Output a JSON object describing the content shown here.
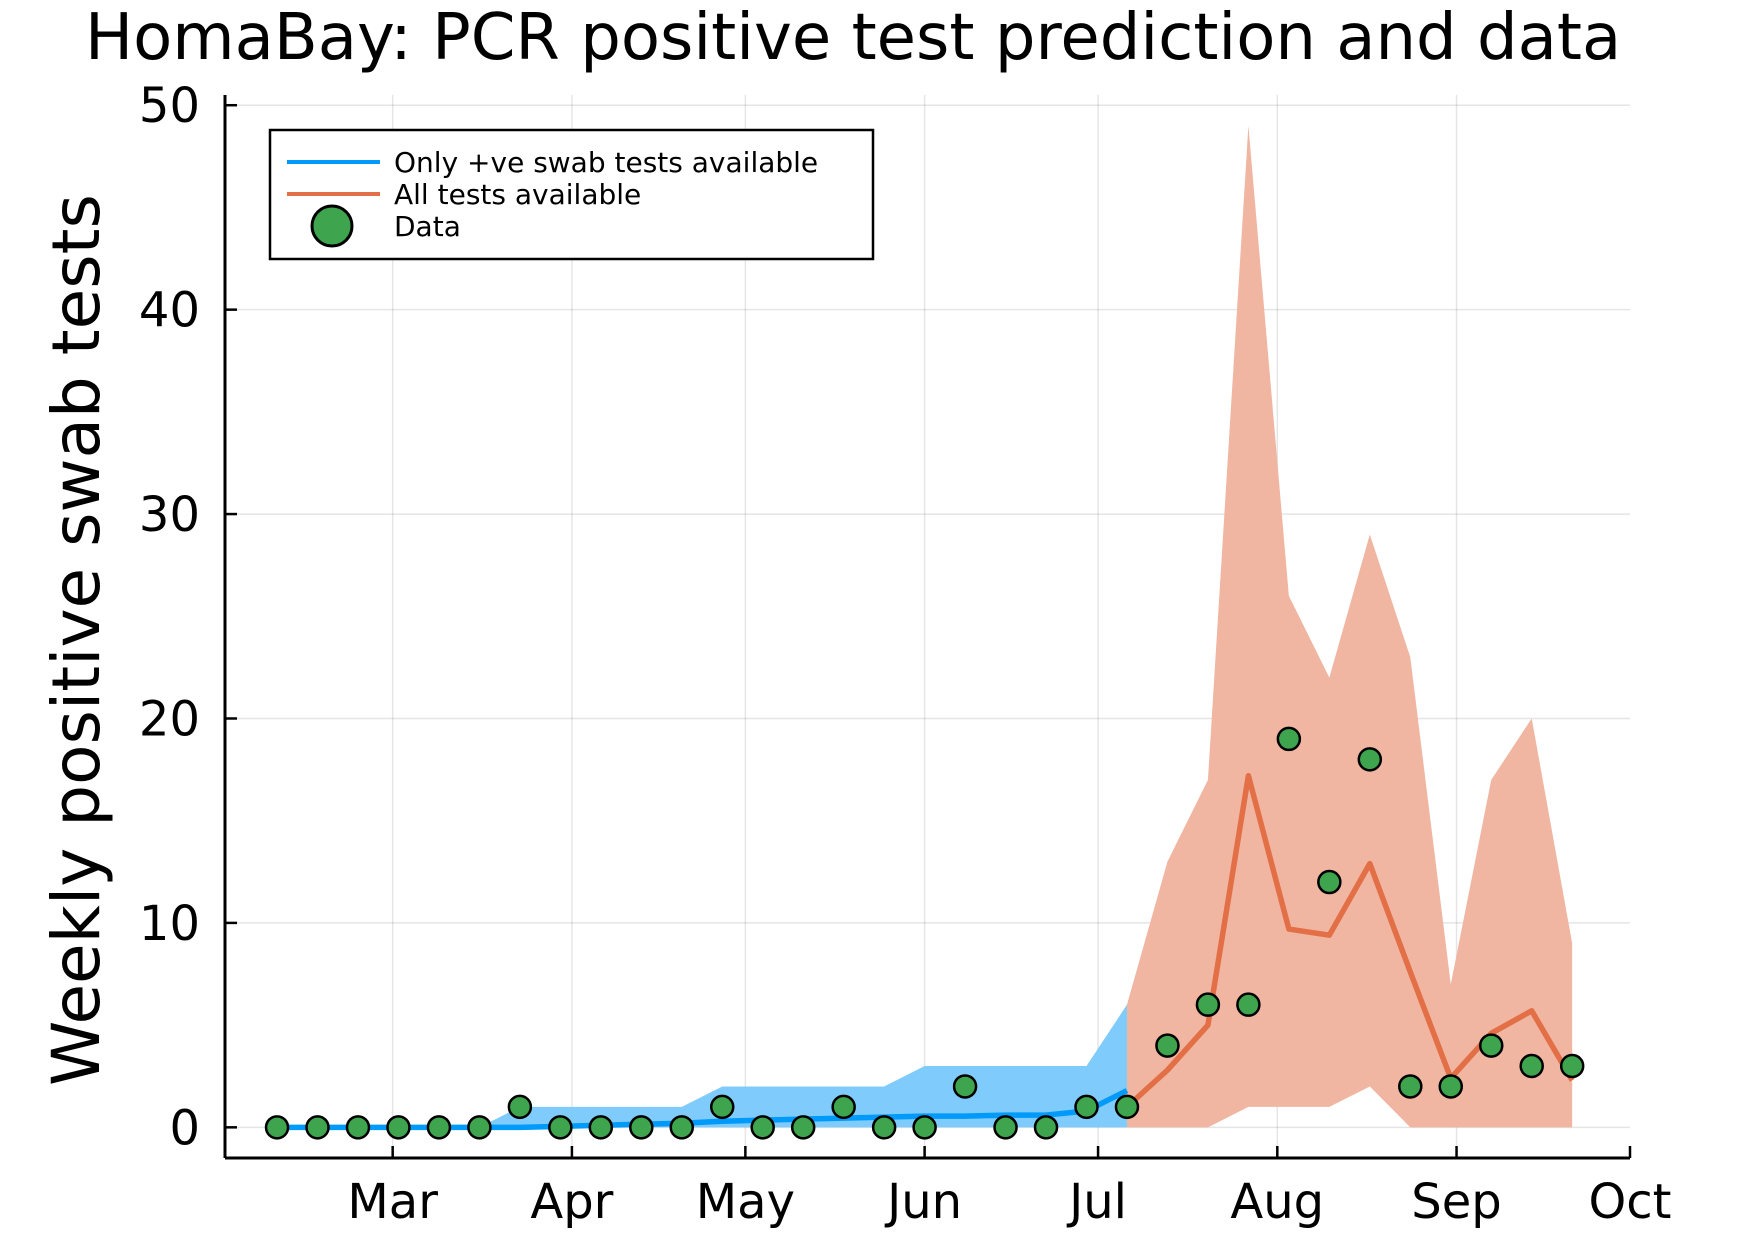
{
  "chart_data": {
    "type": "line",
    "title": "HomaBay: PCR positive test prediction and data",
    "xlabel": "",
    "ylabel": "Weekly positive swab tests",
    "ylim": [
      -1.5,
      50.5
    ],
    "x_date_range": [
      "2020-02-01",
      "2020-10-01"
    ],
    "x_ticks": [
      {
        "date": "2020-03-01",
        "label": "Mar"
      },
      {
        "date": "2020-04-01",
        "label": "Apr"
      },
      {
        "date": "2020-05-01",
        "label": "May"
      },
      {
        "date": "2020-06-01",
        "label": "Jun"
      },
      {
        "date": "2020-07-01",
        "label": "Jul"
      },
      {
        "date": "2020-08-01",
        "label": "Aug"
      },
      {
        "date": "2020-09-01",
        "label": "Sep"
      },
      {
        "date": "2020-10-01",
        "label": "Oct"
      }
    ],
    "y_ticks": [
      0,
      10,
      20,
      30,
      40,
      50
    ],
    "grid": true,
    "legend_position": "top-left",
    "series": [
      {
        "name": "Only +ve swab tests available",
        "kind": "line_with_band",
        "color": "#009AFA",
        "band_color": "#7FCCFC",
        "x": [
          "2020-02-10",
          "2020-02-17",
          "2020-02-24",
          "2020-03-02",
          "2020-03-09",
          "2020-03-16",
          "2020-03-23",
          "2020-03-30",
          "2020-04-06",
          "2020-04-13",
          "2020-04-20",
          "2020-04-27",
          "2020-05-04",
          "2020-05-11",
          "2020-05-18",
          "2020-05-25",
          "2020-06-01",
          "2020-06-08",
          "2020-06-15",
          "2020-06-22",
          "2020-06-29",
          "2020-07-06"
        ],
        "y": [
          0,
          0,
          0,
          0,
          0,
          0,
          0,
          0.05,
          0.1,
          0.15,
          0.2,
          0.3,
          0.35,
          0.4,
          0.45,
          0.5,
          0.55,
          0.55,
          0.6,
          0.6,
          0.8,
          1.8
        ],
        "lower": [
          0,
          0,
          0,
          0,
          0,
          0,
          0,
          0,
          0,
          0,
          0,
          0,
          0,
          0,
          0,
          0,
          0,
          0,
          0,
          0,
          0,
          0
        ],
        "upper": [
          0,
          0,
          0,
          0,
          0,
          0,
          1,
          1,
          1,
          1,
          1,
          2,
          2,
          2,
          2,
          2,
          3,
          3,
          3,
          3,
          3,
          6
        ]
      },
      {
        "name": "All tests available",
        "kind": "line_with_band",
        "color": "#E26F46",
        "band_color": "#F0B6A2",
        "x": [
          "2020-07-06",
          "2020-07-13",
          "2020-07-20",
          "2020-07-27",
          "2020-08-03",
          "2020-08-10",
          "2020-08-17",
          "2020-08-24",
          "2020-08-31",
          "2020-09-07",
          "2020-09-14",
          "2020-09-21"
        ],
        "y": [
          1.0,
          2.8,
          5.0,
          17.2,
          9.7,
          9.4,
          12.9,
          7.6,
          2.4,
          4.6,
          5.7,
          2.3
        ],
        "lower": [
          0,
          0,
          0,
          1,
          1,
          1,
          2,
          0,
          0,
          0,
          0,
          0
        ],
        "upper": [
          6,
          13,
          17,
          49,
          26,
          22,
          29,
          23,
          7,
          17,
          20,
          9
        ]
      },
      {
        "name": "Data",
        "kind": "scatter",
        "color": "#3EA44E",
        "x": [
          "2020-02-10",
          "2020-02-17",
          "2020-02-24",
          "2020-03-02",
          "2020-03-09",
          "2020-03-16",
          "2020-03-23",
          "2020-03-30",
          "2020-04-06",
          "2020-04-13",
          "2020-04-20",
          "2020-04-27",
          "2020-05-04",
          "2020-05-11",
          "2020-05-18",
          "2020-05-25",
          "2020-06-01",
          "2020-06-08",
          "2020-06-15",
          "2020-06-22",
          "2020-06-29",
          "2020-07-06",
          "2020-07-13",
          "2020-07-20",
          "2020-07-27",
          "2020-08-03",
          "2020-08-10",
          "2020-08-17",
          "2020-08-24",
          "2020-08-31",
          "2020-09-07",
          "2020-09-14",
          "2020-09-21"
        ],
        "y": [
          0,
          0,
          0,
          0,
          0,
          0,
          1,
          0,
          0,
          0,
          0,
          1,
          0,
          0,
          1,
          0,
          0,
          2,
          0,
          0,
          1,
          1,
          4,
          6,
          6,
          19,
          12,
          18,
          2,
          2,
          4,
          3,
          3
        ]
      }
    ]
  }
}
